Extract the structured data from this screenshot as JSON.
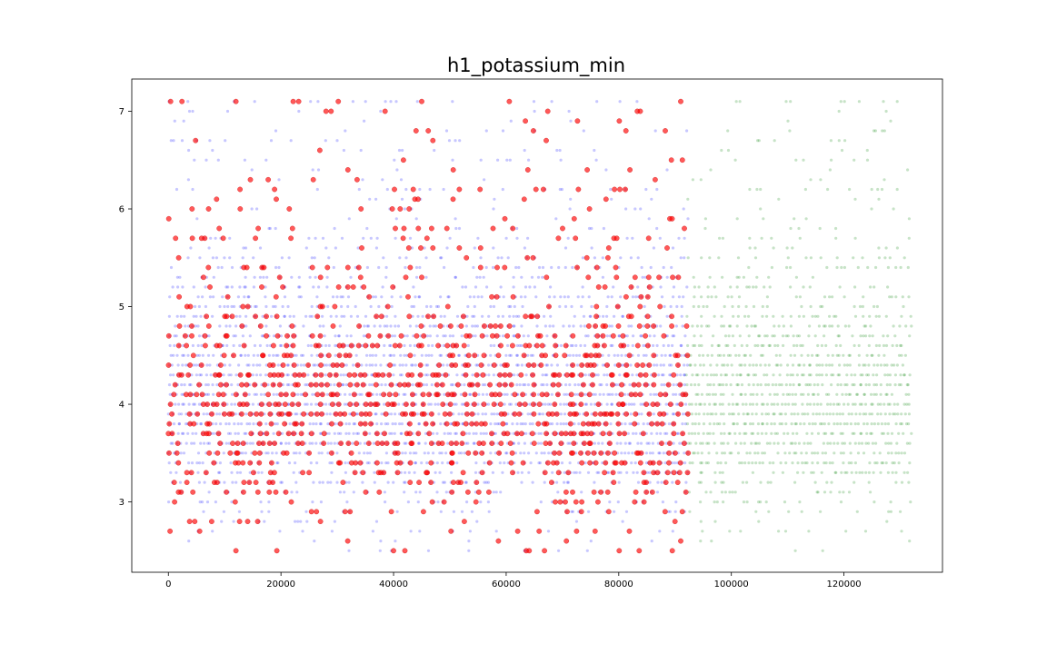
{
  "chart_data": {
    "type": "scatter",
    "title": "h1_potassium_min",
    "xlabel": "",
    "ylabel": "",
    "xlim": [
      -6500,
      137500
    ],
    "ylim": [
      2.28,
      7.33
    ],
    "grid": false,
    "x_ticks": [
      0,
      20000,
      40000,
      60000,
      80000,
      100000,
      120000
    ],
    "x_tick_labels": [
      "0",
      "20000",
      "40000",
      "60000",
      "80000",
      "100000",
      "120000"
    ],
    "y_ticks": [
      3,
      4,
      5,
      6,
      7
    ],
    "y_tick_labels": [
      "3",
      "4",
      "5",
      "6",
      "7"
    ],
    "series": [
      {
        "color": "#0000ff",
        "x_range": [
          0,
          92000
        ],
        "y_levels": [
          2.5,
          2.6,
          2.7,
          2.8,
          2.9,
          3.0,
          3.1,
          3.2,
          3.3,
          3.4,
          3.5,
          3.6,
          3.7,
          3.8,
          3.9,
          4.0,
          4.1,
          4.2,
          4.3,
          4.4,
          4.5,
          4.6,
          4.7,
          4.8,
          4.9,
          5.0,
          5.1,
          5.2,
          5.3,
          5.4,
          5.5,
          5.6,
          5.7,
          5.8,
          5.9,
          6.0,
          6.1,
          6.2,
          6.3,
          6.4,
          6.5,
          6.6,
          6.7,
          6.8,
          6.9,
          7.0,
          7.1
        ],
        "density_by_level": [
          0.1,
          0.06,
          0.08,
          0.1,
          0.14,
          0.2,
          0.26,
          0.34,
          0.45,
          0.6,
          0.72,
          0.82,
          0.9,
          0.95,
          0.97,
          0.97,
          0.95,
          0.93,
          0.88,
          0.82,
          0.76,
          0.7,
          0.62,
          0.56,
          0.5,
          0.42,
          0.36,
          0.3,
          0.26,
          0.22,
          0.18,
          0.15,
          0.13,
          0.11,
          0.1,
          0.09,
          0.08,
          0.07,
          0.06,
          0.06,
          0.05,
          0.05,
          0.05,
          0.04,
          0.04,
          0.04,
          0.08
        ],
        "opacity": 0.22
      },
      {
        "color": "#008000",
        "x_range": [
          92000,
          131500
        ],
        "y_levels": [
          2.5,
          2.6,
          2.7,
          2.8,
          2.9,
          3.0,
          3.1,
          3.2,
          3.3,
          3.4,
          3.5,
          3.6,
          3.7,
          3.8,
          3.9,
          4.0,
          4.1,
          4.2,
          4.3,
          4.4,
          4.5,
          4.6,
          4.7,
          4.8,
          4.9,
          5.0,
          5.1,
          5.2,
          5.3,
          5.4,
          5.5,
          5.6,
          5.7,
          5.8,
          5.9,
          6.0,
          6.1,
          6.2,
          6.3,
          6.4,
          6.5,
          6.6,
          6.7,
          6.8,
          6.9,
          7.0,
          7.1
        ],
        "density_by_level": [
          0.1,
          0.06,
          0.08,
          0.1,
          0.14,
          0.2,
          0.26,
          0.34,
          0.45,
          0.6,
          0.72,
          0.82,
          0.9,
          0.95,
          0.97,
          0.97,
          0.95,
          0.93,
          0.88,
          0.82,
          0.76,
          0.7,
          0.62,
          0.56,
          0.5,
          0.42,
          0.36,
          0.3,
          0.26,
          0.22,
          0.18,
          0.15,
          0.13,
          0.11,
          0.1,
          0.09,
          0.08,
          0.07,
          0.06,
          0.06,
          0.05,
          0.05,
          0.05,
          0.04,
          0.04,
          0.04,
          0.08
        ],
        "opacity": 0.22
      },
      {
        "color": "#ff0000",
        "x_range": [
          0,
          92000
        ],
        "y_levels": [
          2.5,
          2.6,
          2.7,
          2.8,
          2.9,
          3.0,
          3.1,
          3.2,
          3.3,
          3.4,
          3.5,
          3.6,
          3.7,
          3.8,
          3.9,
          4.0,
          4.1,
          4.2,
          4.3,
          4.4,
          4.5,
          4.6,
          4.7,
          4.8,
          4.9,
          5.0,
          5.1,
          5.2,
          5.3,
          5.4,
          5.5,
          5.6,
          5.7,
          5.8,
          5.9,
          6.0,
          6.1,
          6.2,
          6.3,
          6.4,
          6.5,
          6.6,
          6.7,
          6.8,
          6.9,
          7.0,
          7.1
        ],
        "density_by_level": [
          0.035,
          0.02,
          0.04,
          0.05,
          0.07,
          0.1,
          0.13,
          0.17,
          0.22,
          0.27,
          0.3,
          0.33,
          0.35,
          0.36,
          0.36,
          0.35,
          0.34,
          0.32,
          0.3,
          0.28,
          0.26,
          0.24,
          0.21,
          0.19,
          0.16,
          0.14,
          0.12,
          0.1,
          0.085,
          0.075,
          0.065,
          0.055,
          0.05,
          0.045,
          0.05,
          0.04,
          0.03,
          0.035,
          0.025,
          0.02,
          0.02,
          0.02,
          0.02,
          0.018,
          0.015,
          0.015,
          0.03
        ],
        "opacity": 0.65
      }
    ],
    "sample_points": [
      {
        "series": 2,
        "x": 400,
        "y": 7.1
      },
      {
        "series": 2,
        "x": 12000,
        "y": 7.1
      },
      {
        "series": 2,
        "x": 45000,
        "y": 7.1
      },
      {
        "series": 2,
        "x": 91000,
        "y": 7.1
      },
      {
        "series": 2,
        "x": 300,
        "y": 2.7
      },
      {
        "series": 2,
        "x": 12000,
        "y": 2.5
      },
      {
        "series": 2,
        "x": 40000,
        "y": 2.5
      },
      {
        "series": 2,
        "x": 89500,
        "y": 2.5
      }
    ]
  }
}
